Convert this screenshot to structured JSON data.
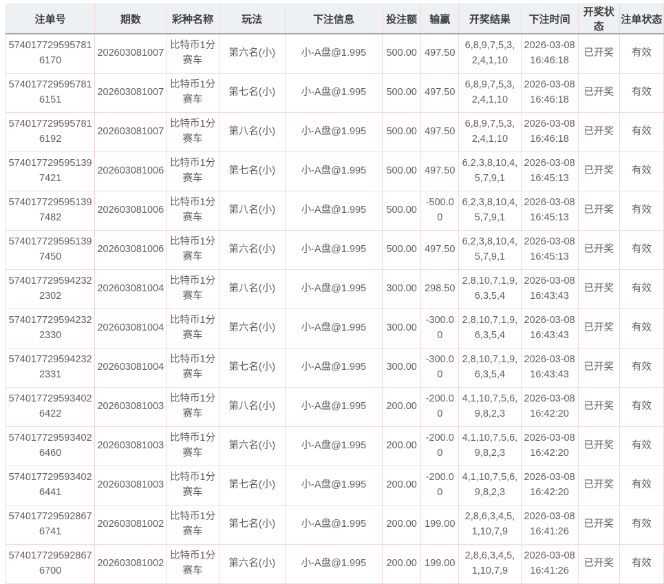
{
  "colors": {
    "header_bg": "#eef1f4",
    "grid_line": "#f3d9d9",
    "header_underline": "#a3a7ab",
    "header_text": "#3f3f3f",
    "cell_text": "#5f5f5f"
  },
  "table": {
    "columns": [
      {
        "key": "order_no",
        "label": "注单号"
      },
      {
        "key": "period",
        "label": "期数"
      },
      {
        "key": "lottery",
        "label": "彩种名称"
      },
      {
        "key": "play",
        "label": "玩法"
      },
      {
        "key": "bet_info",
        "label": "下注信息"
      },
      {
        "key": "amount",
        "label": "投注额"
      },
      {
        "key": "win_loss",
        "label": "输赢"
      },
      {
        "key": "result",
        "label": "开奖结果"
      },
      {
        "key": "bet_time",
        "label": "下注时间"
      },
      {
        "key": "draw_status",
        "label": "开奖状态"
      },
      {
        "key": "order_status",
        "label": "注单状态"
      }
    ],
    "rows": [
      {
        "order_no": "5740177295957816170",
        "period": "202603081007",
        "lottery": "比特币1分赛车",
        "play": "第六名(小)",
        "bet_info": "小-A盘@1.995",
        "amount": "500.00",
        "win_loss": "497.50",
        "result": "6,8,9,7,5,3,2,4,1,10",
        "bet_time": "2026-03-08 16:46:18",
        "draw_status": "已开奖",
        "order_status": "有效"
      },
      {
        "order_no": "5740177295957816151",
        "period": "202603081007",
        "lottery": "比特币1分赛车",
        "play": "第七名(小)",
        "bet_info": "小-A盘@1.995",
        "amount": "500.00",
        "win_loss": "497.50",
        "result": "6,8,9,7,5,3,2,4,1,10",
        "bet_time": "2026-03-08 16:46:18",
        "draw_status": "已开奖",
        "order_status": "有效"
      },
      {
        "order_no": "5740177295957816192",
        "period": "202603081007",
        "lottery": "比特币1分赛车",
        "play": "第八名(小)",
        "bet_info": "小-A盘@1.995",
        "amount": "500.00",
        "win_loss": "497.50",
        "result": "6,8,9,7,5,3,2,4,1,10",
        "bet_time": "2026-03-08 16:46:18",
        "draw_status": "已开奖",
        "order_status": "有效"
      },
      {
        "order_no": "5740177295951397421",
        "period": "202603081006",
        "lottery": "比特币1分赛车",
        "play": "第七名(小)",
        "bet_info": "小-A盘@1.995",
        "amount": "500.00",
        "win_loss": "497.50",
        "result": "6,2,3,8,10,4,5,7,9,1",
        "bet_time": "2026-03-08 16:45:13",
        "draw_status": "已开奖",
        "order_status": "有效"
      },
      {
        "order_no": "5740177295951397482",
        "period": "202603081006",
        "lottery": "比特币1分赛车",
        "play": "第八名(小)",
        "bet_info": "小-A盘@1.995",
        "amount": "500.00",
        "win_loss": "-500.00",
        "result": "6,2,3,8,10,4,5,7,9,1",
        "bet_time": "2026-03-08 16:45:13",
        "draw_status": "已开奖",
        "order_status": "有效"
      },
      {
        "order_no": "5740177295951397450",
        "period": "202603081006",
        "lottery": "比特币1分赛车",
        "play": "第六名(小)",
        "bet_info": "小-A盘@1.995",
        "amount": "500.00",
        "win_loss": "497.50",
        "result": "6,2,3,8,10,4,5,7,9,1",
        "bet_time": "2026-03-08 16:45:13",
        "draw_status": "已开奖",
        "order_status": "有效"
      },
      {
        "order_no": "5740177295942322302",
        "period": "202603081004",
        "lottery": "比特币1分赛车",
        "play": "第八名(小)",
        "bet_info": "小-A盘@1.995",
        "amount": "300.00",
        "win_loss": "298.50",
        "result": "2,8,10,7,1,9,6,3,5,4",
        "bet_time": "2026-03-08 16:43:43",
        "draw_status": "已开奖",
        "order_status": "有效"
      },
      {
        "order_no": "5740177295942322330",
        "period": "202603081004",
        "lottery": "比特币1分赛车",
        "play": "第六名(小)",
        "bet_info": "小-A盘@1.995",
        "amount": "300.00",
        "win_loss": "-300.00",
        "result": "2,8,10,7,1,9,6,3,5,4",
        "bet_time": "2026-03-08 16:43:43",
        "draw_status": "已开奖",
        "order_status": "有效"
      },
      {
        "order_no": "5740177295942322331",
        "period": "202603081004",
        "lottery": "比特币1分赛车",
        "play": "第七名(小)",
        "bet_info": "小-A盘@1.995",
        "amount": "300.00",
        "win_loss": "-300.00",
        "result": "2,8,10,7,1,9,6,3,5,4",
        "bet_time": "2026-03-08 16:43:43",
        "draw_status": "已开奖",
        "order_status": "有效"
      },
      {
        "order_no": "5740177295934026422",
        "period": "202603081003",
        "lottery": "比特币1分赛车",
        "play": "第八名(小)",
        "bet_info": "小-A盘@1.995",
        "amount": "200.00",
        "win_loss": "-200.00",
        "result": "4,1,10,7,5,6,9,8,2,3",
        "bet_time": "2026-03-08 16:42:20",
        "draw_status": "已开奖",
        "order_status": "有效"
      },
      {
        "order_no": "5740177295934026460",
        "period": "202603081003",
        "lottery": "比特币1分赛车",
        "play": "第六名(小)",
        "bet_info": "小-A盘@1.995",
        "amount": "200.00",
        "win_loss": "-200.00",
        "result": "4,1,10,7,5,6,9,8,2,3",
        "bet_time": "2026-03-08 16:42:20",
        "draw_status": "已开奖",
        "order_status": "有效"
      },
      {
        "order_no": "5740177295934026441",
        "period": "202603081003",
        "lottery": "比特币1分赛车",
        "play": "第七名(小)",
        "bet_info": "小-A盘@1.995",
        "amount": "200.00",
        "win_loss": "-200.00",
        "result": "4,1,10,7,5,6,9,8,2,3",
        "bet_time": "2026-03-08 16:42:20",
        "draw_status": "已开奖",
        "order_status": "有效"
      },
      {
        "order_no": "5740177295928676741",
        "period": "202603081002",
        "lottery": "比特币1分赛车",
        "play": "第七名(小)",
        "bet_info": "小-A盘@1.995",
        "amount": "200.00",
        "win_loss": "199.00",
        "result": "2,8,6,3,4,5,1,10,7,9",
        "bet_time": "2026-03-08 16:41:26",
        "draw_status": "已开奖",
        "order_status": "有效"
      },
      {
        "order_no": "5740177295928676700",
        "period": "202603081002",
        "lottery": "比特币1分赛车",
        "play": "第六名(小)",
        "bet_info": "小-A盘@1.995",
        "amount": "200.00",
        "win_loss": "199.00",
        "result": "2,8,6,3,4,5,1,10,7,9",
        "bet_time": "2026-03-08 16:41:26",
        "draw_status": "已开奖",
        "order_status": "有效"
      }
    ]
  }
}
